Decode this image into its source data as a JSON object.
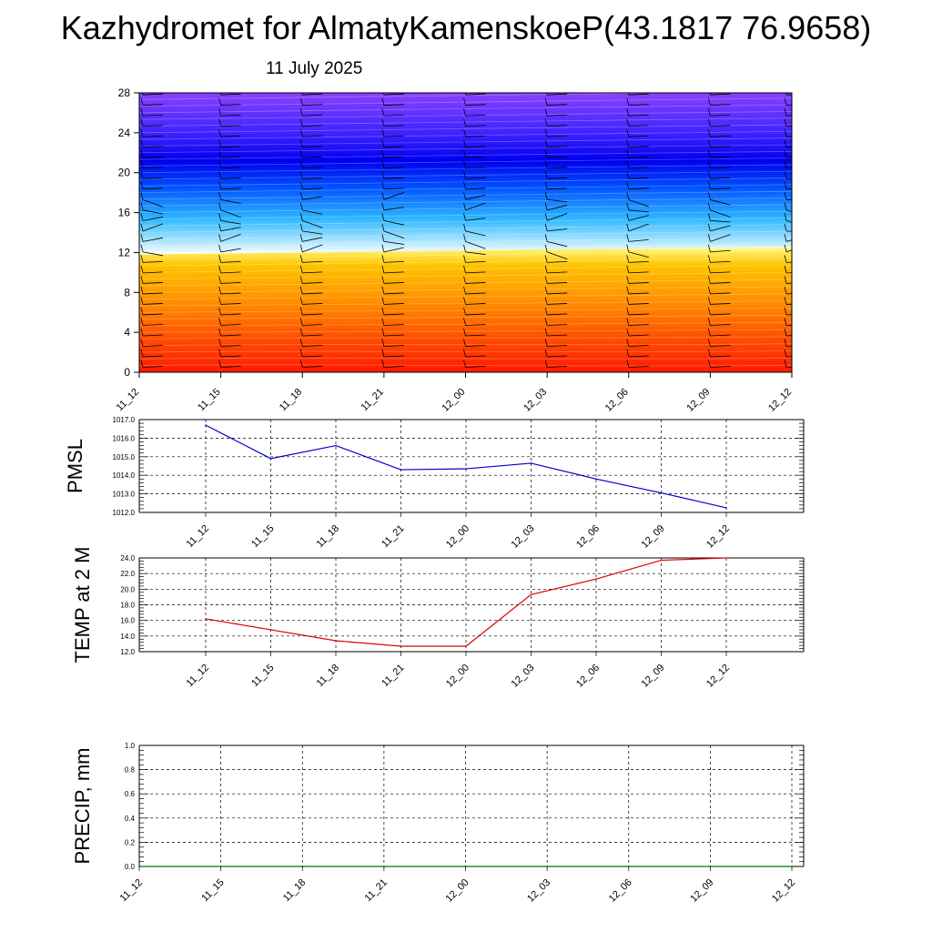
{
  "header": {
    "title": "Kazhydromet for AlmatyKamenskoeP(43.1817 76.9658)",
    "date": "11 July 2025"
  },
  "chart_data": [
    {
      "type": "heatmap",
      "title": "",
      "xlabel": "",
      "ylabel": "",
      "x_ticks": [
        "11_12",
        "11_15",
        "11_18",
        "11_21",
        "12_00",
        "12_03",
        "12_06",
        "12_09",
        "12_12"
      ],
      "y_ticks": [
        "0",
        "4",
        "8",
        "12",
        "16",
        "20",
        "24",
        "28"
      ],
      "ylim": [
        0,
        28
      ],
      "freezing_level_left": 11.8,
      "freezing_level_right": 12.6,
      "wind_barbs": true,
      "colormap": [
        "#ff0000",
        "#ff7f00",
        "#ffd500",
        "#ffffff",
        "#00a8ff",
        "#0000ff",
        "#7a3dff"
      ]
    },
    {
      "type": "line",
      "ylabel": "PMSL",
      "categories": [
        "11_12",
        "11_15",
        "11_18",
        "11_21",
        "12_00",
        "12_03",
        "12_06",
        "12_09",
        "12_12"
      ],
      "values": [
        1016.7,
        1014.9,
        1015.6,
        1014.3,
        1014.35,
        1014.65,
        1013.8,
        1013.05,
        1012.25
      ],
      "y_ticks": [
        "1017.0",
        "1016.0",
        "1015.0",
        "1014.0",
        "1013.0",
        "1012.0"
      ],
      "ylim": [
        1012,
        1017
      ],
      "color": "#0000cc",
      "grid": true
    },
    {
      "type": "line",
      "ylabel": "TEMP at 2 M",
      "categories": [
        "11_12",
        "11_15",
        "11_18",
        "11_21",
        "12_00",
        "12_03",
        "12_06",
        "12_09",
        "12_12"
      ],
      "values": [
        16.2,
        14.8,
        13.4,
        12.7,
        12.7,
        19.3,
        21.3,
        23.7,
        24.0
      ],
      "y_ticks": [
        "24.0",
        "22.0",
        "20.0",
        "18.0",
        "16.0",
        "14.0",
        "12.0"
      ],
      "ylim": [
        12,
        24
      ],
      "color": "#dd0000",
      "grid": true
    },
    {
      "type": "line",
      "ylabel": "PRECIP, mm",
      "categories": [
        "11_12",
        "11_15",
        "11_18",
        "11_21",
        "12_00",
        "12_03",
        "12_06",
        "12_09",
        "12_12"
      ],
      "values": [
        0,
        0,
        0,
        0,
        0,
        0,
        0,
        0,
        0
      ],
      "y_ticks": [
        "1.0",
        "0.8",
        "0.6",
        "0.4",
        "0.2",
        "0.0"
      ],
      "ylim": [
        0,
        1
      ],
      "color": "#007700",
      "grid": true
    }
  ]
}
